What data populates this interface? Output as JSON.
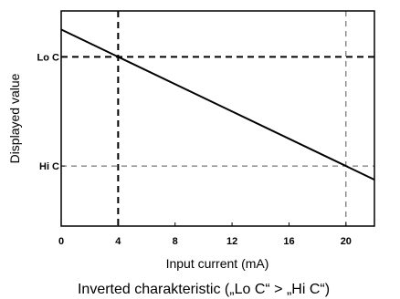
{
  "chart_data": {
    "type": "line",
    "xlabel": "Input current (mA)",
    "ylabel": "Displayed value",
    "caption": "Inverted charakteristic („Lo C“ > „Hi C“)",
    "xlim": [
      0,
      22
    ],
    "ylim": [
      -0.55,
      1.42
    ],
    "x_ticks": [
      {
        "value": 0,
        "label": "0"
      },
      {
        "value": 4,
        "label": "4"
      },
      {
        "value": 8,
        "label": "8"
      },
      {
        "value": 12,
        "label": "12"
      },
      {
        "value": 16,
        "label": "16"
      },
      {
        "value": 20,
        "label": "20"
      }
    ],
    "y_ticks": [
      {
        "value": 1,
        "label": "Lo C"
      },
      {
        "value": 0,
        "label": "Hi C"
      }
    ],
    "series": [
      {
        "x": [
          0,
          22
        ],
        "y": [
          1.25,
          -0.125
        ],
        "color": "#000000"
      }
    ],
    "reference_lines": [
      {
        "axis": "y",
        "value": 1,
        "style": "heavy-dashed"
      },
      {
        "axis": "x",
        "value": 4,
        "style": "heavy-dashed"
      },
      {
        "axis": "y",
        "value": 0,
        "style": "light-dashed"
      },
      {
        "axis": "x",
        "value": 20,
        "style": "light-dashed"
      }
    ],
    "grid": false,
    "legend": "none"
  }
}
